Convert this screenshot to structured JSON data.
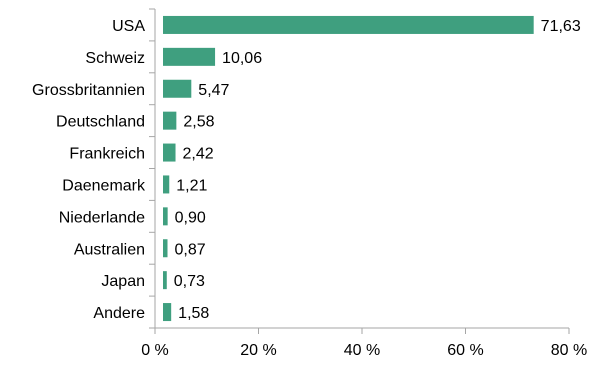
{
  "chart_data": {
    "type": "bar",
    "orientation": "horizontal",
    "categories": [
      "USA",
      "Schweiz",
      "Grossbritannien",
      "Deutschland",
      "Frankreich",
      "Daenemark",
      "Niederlande",
      "Australien",
      "Japan",
      "Andere"
    ],
    "values": [
      71.63,
      10.06,
      5.47,
      2.58,
      2.42,
      1.21,
      0.9,
      0.87,
      0.73,
      1.58
    ],
    "value_labels": [
      "71,63",
      "10,06",
      "5,47",
      "2,58",
      "2,42",
      "1,21",
      "0,90",
      "0,87",
      "0,73",
      "1,58"
    ],
    "xlim": [
      0,
      80
    ],
    "x_ticks": [
      0,
      20,
      40,
      60,
      80
    ],
    "x_tick_labels": [
      "0 %",
      "20 %",
      "40 %",
      "60 %",
      "80 %"
    ],
    "grid": false,
    "colors": {
      "bar": "#3f9f7f",
      "axis": "#a6a6a6",
      "text": "#000000"
    }
  }
}
